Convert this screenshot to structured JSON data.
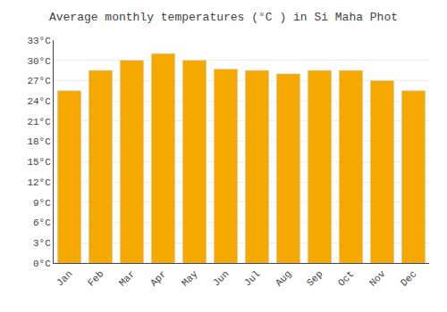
{
  "chart_data": {
    "type": "bar",
    "title": "Average monthly temperatures (°C ) in Si Maha Phot",
    "categories": [
      "Jan",
      "Feb",
      "Mar",
      "Apr",
      "May",
      "Jun",
      "Jul",
      "Aug",
      "Sep",
      "Oct",
      "Nov",
      "Dec"
    ],
    "values": [
      25.5,
      28.5,
      30.0,
      31.0,
      30.0,
      28.7,
      28.5,
      28.0,
      28.5,
      28.5,
      27.0,
      25.5
    ],
    "color": "#F5A800",
    "ylim": [
      0,
      33
    ],
    "yticks": [
      {
        "value": 0,
        "label": "0°C"
      },
      {
        "value": 3,
        "label": "3°C"
      },
      {
        "value": 6,
        "label": "6°C"
      },
      {
        "value": 9,
        "label": "9°C"
      },
      {
        "value": 12,
        "label": "12°C"
      },
      {
        "value": 15,
        "label": "15°C"
      },
      {
        "value": 18,
        "label": "18°C"
      },
      {
        "value": 21,
        "label": "21°C"
      },
      {
        "value": 24,
        "label": "24°C"
      },
      {
        "value": 27,
        "label": "27°C"
      },
      {
        "value": 30,
        "label": "30°C"
      },
      {
        "value": 33,
        "label": "33°C"
      }
    ],
    "grid": true
  }
}
